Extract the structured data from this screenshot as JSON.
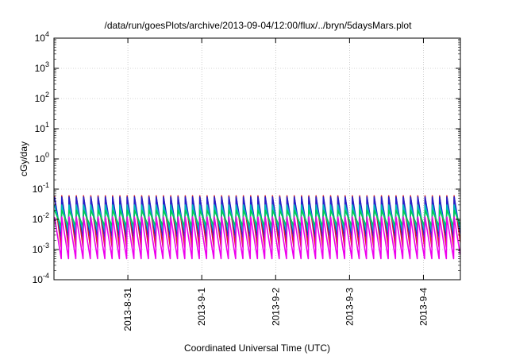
{
  "chart_data": {
    "type": "line",
    "title": "/data/run/goesPlots/archive/2013-09-04/12:00/flux/../bryn/5daysMars.plot",
    "xlabel": "Coordinated Universal Time (UTC)",
    "ylabel": "cGy/day",
    "x_range": [
      "2013-08-30T00:00",
      "2013-09-04T12:00"
    ],
    "x_ticks": [
      "2013-8-31",
      "2013-9-1",
      "2013-9-2",
      "2013-9-3",
      "2013-9-4"
    ],
    "y_scale": "log",
    "ylim": [
      0.0001,
      10000
    ],
    "y_ticks": [
      {
        "base": "10",
        "exp": "-4"
      },
      {
        "base": "10",
        "exp": "-3"
      },
      {
        "base": "10",
        "exp": "-2"
      },
      {
        "base": "10",
        "exp": "-1"
      },
      {
        "base": "10",
        "exp": "0"
      },
      {
        "base": "10",
        "exp": "1"
      },
      {
        "base": "10",
        "exp": "2"
      },
      {
        "base": "10",
        "exp": "3"
      },
      {
        "base": "10",
        "exp": "4"
      }
    ],
    "grid": true,
    "sawtooth_period_hours": 2.36,
    "series": [
      {
        "color": "#dd2222",
        "peak": 0.06,
        "trough": 0.0012
      },
      {
        "color": "#2222cc",
        "peak": 0.055,
        "trough": 0.0025
      },
      {
        "color": "#00bbbb",
        "peak": 0.03,
        "trough": 0.004
      },
      {
        "color": "#00cc55",
        "peak": 0.02,
        "trough": 0.006
      },
      {
        "color": "#ee00ee",
        "peak": 0.012,
        "trough": 0.0005
      }
    ]
  }
}
